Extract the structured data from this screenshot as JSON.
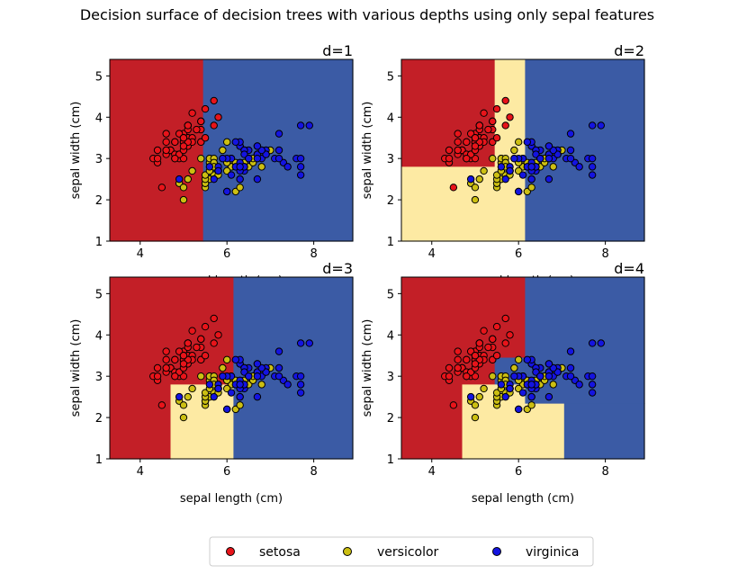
{
  "figure": {
    "title": "Decision surface of decision trees with various depths using only sepal features"
  },
  "colors": {
    "setosa": "#e8141a",
    "versicolor": "#ccbf12",
    "virginica": "#1414e0",
    "region_setosa": "#c31f27",
    "region_versicolor": "#fdeaa3",
    "region_virginica": "#3b5ba5"
  },
  "legend": {
    "placement": "bottom-center",
    "entries": [
      "setosa",
      "versicolor",
      "virginica"
    ]
  },
  "iris": {
    "setosa": [
      [
        5.1,
        3.5
      ],
      [
        4.9,
        3.0
      ],
      [
        4.7,
        3.2
      ],
      [
        4.6,
        3.1
      ],
      [
        5.0,
        3.6
      ],
      [
        5.4,
        3.9
      ],
      [
        4.6,
        3.4
      ],
      [
        5.0,
        3.4
      ],
      [
        4.4,
        2.9
      ],
      [
        4.9,
        3.1
      ],
      [
        5.4,
        3.7
      ],
      [
        4.8,
        3.4
      ],
      [
        4.8,
        3.0
      ],
      [
        4.3,
        3.0
      ],
      [
        5.8,
        4.0
      ],
      [
        5.7,
        4.4
      ],
      [
        5.4,
        3.9
      ],
      [
        5.1,
        3.5
      ],
      [
        5.7,
        3.8
      ],
      [
        5.1,
        3.8
      ],
      [
        5.4,
        3.4
      ],
      [
        5.1,
        3.7
      ],
      [
        4.6,
        3.6
      ],
      [
        5.1,
        3.3
      ],
      [
        4.8,
        3.4
      ],
      [
        5.0,
        3.0
      ],
      [
        5.0,
        3.4
      ],
      [
        5.2,
        3.5
      ],
      [
        5.2,
        3.4
      ],
      [
        4.7,
        3.2
      ],
      [
        4.8,
        3.1
      ],
      [
        5.4,
        3.4
      ],
      [
        5.2,
        4.1
      ],
      [
        5.5,
        4.2
      ],
      [
        4.9,
        3.1
      ],
      [
        5.0,
        3.2
      ],
      [
        5.5,
        3.5
      ],
      [
        4.9,
        3.6
      ],
      [
        4.4,
        3.0
      ],
      [
        5.1,
        3.4
      ],
      [
        5.0,
        3.5
      ],
      [
        4.5,
        2.3
      ],
      [
        4.4,
        3.2
      ],
      [
        5.0,
        3.5
      ],
      [
        5.1,
        3.8
      ],
      [
        4.8,
        3.0
      ],
      [
        5.1,
        3.8
      ],
      [
        4.6,
        3.2
      ],
      [
        5.3,
        3.7
      ],
      [
        5.0,
        3.3
      ]
    ],
    "versicolor": [
      [
        7.0,
        3.2
      ],
      [
        6.4,
        3.2
      ],
      [
        6.9,
        3.1
      ],
      [
        5.5,
        2.3
      ],
      [
        6.5,
        2.8
      ],
      [
        5.7,
        2.8
      ],
      [
        6.3,
        3.3
      ],
      [
        4.9,
        2.4
      ],
      [
        6.6,
        2.9
      ],
      [
        5.2,
        2.7
      ],
      [
        5.0,
        2.0
      ],
      [
        5.9,
        3.0
      ],
      [
        6.0,
        2.2
      ],
      [
        6.1,
        2.9
      ],
      [
        5.6,
        2.9
      ],
      [
        6.7,
        3.1
      ],
      [
        5.6,
        3.0
      ],
      [
        5.8,
        2.7
      ],
      [
        6.2,
        2.2
      ],
      [
        5.6,
        2.5
      ],
      [
        5.9,
        3.2
      ],
      [
        6.1,
        2.8
      ],
      [
        6.3,
        2.5
      ],
      [
        6.1,
        2.8
      ],
      [
        6.4,
        2.9
      ],
      [
        6.6,
        3.0
      ],
      [
        6.8,
        2.8
      ],
      [
        6.7,
        3.0
      ],
      [
        6.0,
        2.9
      ],
      [
        5.7,
        2.6
      ],
      [
        5.5,
        2.4
      ],
      [
        5.5,
        2.4
      ],
      [
        5.8,
        2.7
      ],
      [
        6.0,
        2.7
      ],
      [
        5.4,
        3.0
      ],
      [
        6.0,
        3.4
      ],
      [
        6.7,
        3.1
      ],
      [
        6.3,
        2.3
      ],
      [
        5.6,
        3.0
      ],
      [
        5.5,
        2.5
      ],
      [
        5.5,
        2.6
      ],
      [
        6.1,
        3.0
      ],
      [
        5.8,
        2.6
      ],
      [
        5.0,
        2.3
      ],
      [
        5.6,
        2.7
      ],
      [
        5.7,
        3.0
      ],
      [
        5.7,
        2.9
      ],
      [
        6.2,
        2.9
      ],
      [
        5.1,
        2.5
      ],
      [
        5.7,
        2.8
      ]
    ],
    "virginica": [
      [
        6.3,
        3.3
      ],
      [
        5.8,
        2.7
      ],
      [
        7.1,
        3.0
      ],
      [
        6.3,
        2.9
      ],
      [
        6.5,
        3.0
      ],
      [
        7.6,
        3.0
      ],
      [
        4.9,
        2.5
      ],
      [
        7.3,
        2.9
      ],
      [
        6.7,
        2.5
      ],
      [
        7.2,
        3.6
      ],
      [
        6.5,
        3.2
      ],
      [
        6.4,
        2.7
      ],
      [
        6.8,
        3.0
      ],
      [
        5.7,
        2.5
      ],
      [
        5.8,
        2.8
      ],
      [
        6.4,
        3.2
      ],
      [
        6.5,
        3.0
      ],
      [
        7.7,
        3.8
      ],
      [
        7.7,
        2.6
      ],
      [
        6.0,
        2.2
      ],
      [
        6.9,
        3.2
      ],
      [
        5.6,
        2.8
      ],
      [
        7.7,
        2.8
      ],
      [
        6.3,
        2.7
      ],
      [
        6.7,
        3.3
      ],
      [
        7.2,
        3.2
      ],
      [
        6.2,
        2.8
      ],
      [
        6.1,
        3.0
      ],
      [
        6.4,
        2.8
      ],
      [
        7.2,
        3.0
      ],
      [
        7.4,
        2.8
      ],
      [
        7.9,
        3.8
      ],
      [
        6.4,
        2.8
      ],
      [
        6.3,
        2.8
      ],
      [
        6.1,
        2.6
      ],
      [
        7.7,
        3.0
      ],
      [
        6.3,
        3.4
      ],
      [
        6.4,
        3.1
      ],
      [
        6.0,
        3.0
      ],
      [
        6.9,
        3.1
      ],
      [
        6.7,
        3.1
      ],
      [
        6.9,
        3.1
      ],
      [
        5.8,
        2.7
      ],
      [
        6.8,
        3.2
      ],
      [
        6.7,
        3.3
      ],
      [
        6.7,
        3.0
      ],
      [
        6.3,
        2.5
      ],
      [
        6.5,
        3.0
      ],
      [
        6.2,
        3.4
      ],
      [
        5.9,
        3.0
      ]
    ]
  },
  "chart_data": [
    {
      "type": "scatter",
      "title": "d=1",
      "xlabel": "sepal length (cm)",
      "ylabel": "sepal width (cm)",
      "xlim": [
        3.3,
        8.9
      ],
      "ylim": [
        1.0,
        5.4
      ],
      "xticks": [
        4,
        6,
        8
      ],
      "yticks": [
        1,
        2,
        3,
        4,
        5
      ],
      "grid": false,
      "series": [
        {
          "name": "setosa"
        },
        {
          "name": "versicolor"
        },
        {
          "name": "virginica"
        }
      ],
      "regions": [
        {
          "class": "setosa",
          "x": [
            3.3,
            5.45
          ],
          "y": [
            1.0,
            5.4
          ]
        },
        {
          "class": "virginica",
          "x": [
            5.45,
            8.9
          ],
          "y": [
            1.0,
            5.4
          ]
        }
      ]
    },
    {
      "type": "scatter",
      "title": "d=2",
      "xlabel": "sepal length (cm)",
      "ylabel": "sepal width (cm)",
      "xlim": [
        3.3,
        8.9
      ],
      "ylim": [
        1.0,
        5.4
      ],
      "xticks": [
        4,
        6,
        8
      ],
      "yticks": [
        1,
        2,
        3,
        4,
        5
      ],
      "grid": false,
      "series": [
        {
          "name": "setosa"
        },
        {
          "name": "versicolor"
        },
        {
          "name": "virginica"
        }
      ],
      "regions": [
        {
          "class": "setosa",
          "x": [
            3.3,
            5.45
          ],
          "y": [
            2.8,
            5.4
          ]
        },
        {
          "class": "versicolor",
          "x": [
            3.3,
            5.45
          ],
          "y": [
            1.0,
            2.8
          ]
        },
        {
          "class": "versicolor",
          "x": [
            5.45,
            6.15
          ],
          "y": [
            1.0,
            5.4
          ]
        },
        {
          "class": "virginica",
          "x": [
            6.15,
            8.9
          ],
          "y": [
            1.0,
            5.4
          ]
        }
      ]
    },
    {
      "type": "scatter",
      "title": "d=3",
      "xlabel": "sepal length (cm)",
      "ylabel": "sepal width (cm)",
      "xlim": [
        3.3,
        8.9
      ],
      "ylim": [
        1.0,
        5.4
      ],
      "xticks": [
        4,
        6,
        8
      ],
      "yticks": [
        1,
        2,
        3,
        4,
        5
      ],
      "grid": false,
      "series": [
        {
          "name": "setosa"
        },
        {
          "name": "versicolor"
        },
        {
          "name": "virginica"
        }
      ],
      "regions": [
        {
          "class": "setosa",
          "x": [
            3.3,
            4.7
          ],
          "y": [
            1.0,
            5.4
          ]
        },
        {
          "class": "setosa",
          "x": [
            4.7,
            6.15
          ],
          "y": [
            2.8,
            5.4
          ]
        },
        {
          "class": "versicolor",
          "x": [
            4.7,
            6.15
          ],
          "y": [
            1.0,
            2.8
          ]
        },
        {
          "class": "virginica",
          "x": [
            6.15,
            8.9
          ],
          "y": [
            1.0,
            5.4
          ]
        }
      ]
    },
    {
      "type": "scatter",
      "title": "d=4",
      "xlabel": "sepal length (cm)",
      "ylabel": "sepal width (cm)",
      "xlim": [
        3.3,
        8.9
      ],
      "ylim": [
        1.0,
        5.4
      ],
      "xticks": [
        4,
        6,
        8
      ],
      "yticks": [
        1,
        2,
        3,
        4,
        5
      ],
      "grid": false,
      "series": [
        {
          "name": "setosa"
        },
        {
          "name": "versicolor"
        },
        {
          "name": "virginica"
        }
      ],
      "regions": [
        {
          "class": "setosa",
          "x": [
            3.3,
            4.7
          ],
          "y": [
            1.0,
            5.4
          ]
        },
        {
          "class": "setosa",
          "x": [
            4.7,
            6.15
          ],
          "y": [
            3.45,
            5.4
          ]
        },
        {
          "class": "setosa",
          "x": [
            4.7,
            5.45
          ],
          "y": [
            2.8,
            3.45
          ]
        },
        {
          "class": "virginica",
          "x": [
            5.45,
            6.15
          ],
          "y": [
            2.8,
            3.45
          ]
        },
        {
          "class": "versicolor",
          "x": [
            4.7,
            6.15
          ],
          "y": [
            2.35,
            2.8
          ]
        },
        {
          "class": "versicolor",
          "x": [
            4.7,
            7.05
          ],
          "y": [
            1.0,
            2.35
          ]
        },
        {
          "class": "virginica",
          "x": [
            6.15,
            8.9
          ],
          "y": [
            2.35,
            5.4
          ]
        },
        {
          "class": "virginica",
          "x": [
            7.05,
            8.9
          ],
          "y": [
            1.0,
            2.35
          ]
        }
      ]
    }
  ]
}
